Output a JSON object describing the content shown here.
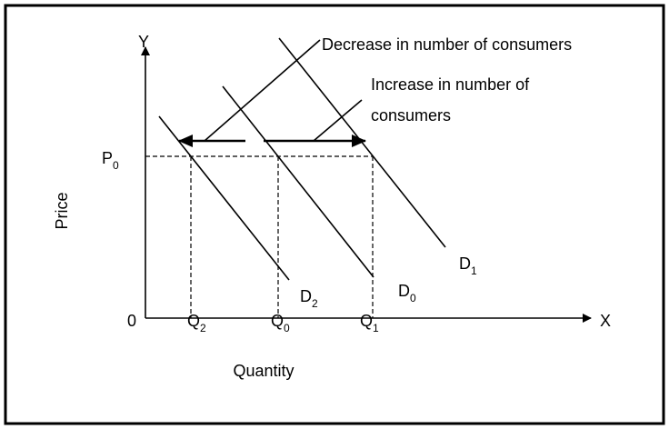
{
  "diagram": {
    "axes": {
      "y": "Y",
      "x": "X",
      "origin": "0",
      "y_label": "Price",
      "x_label": "Quantity"
    },
    "price": {
      "main": "P",
      "sub": "0"
    },
    "quantities": [
      {
        "main": "Q",
        "sub": "2"
      },
      {
        "main": "Q",
        "sub": "0"
      },
      {
        "main": "Q",
        "sub": "1"
      }
    ],
    "curves": [
      {
        "main": "D",
        "sub": "2"
      },
      {
        "main": "D",
        "sub": "0"
      },
      {
        "main": "D",
        "sub": "1"
      }
    ],
    "annotations": {
      "decrease": "Decrease in number of consumers",
      "increase_line1": "Increase in number of",
      "increase_line2": "consumers"
    }
  }
}
